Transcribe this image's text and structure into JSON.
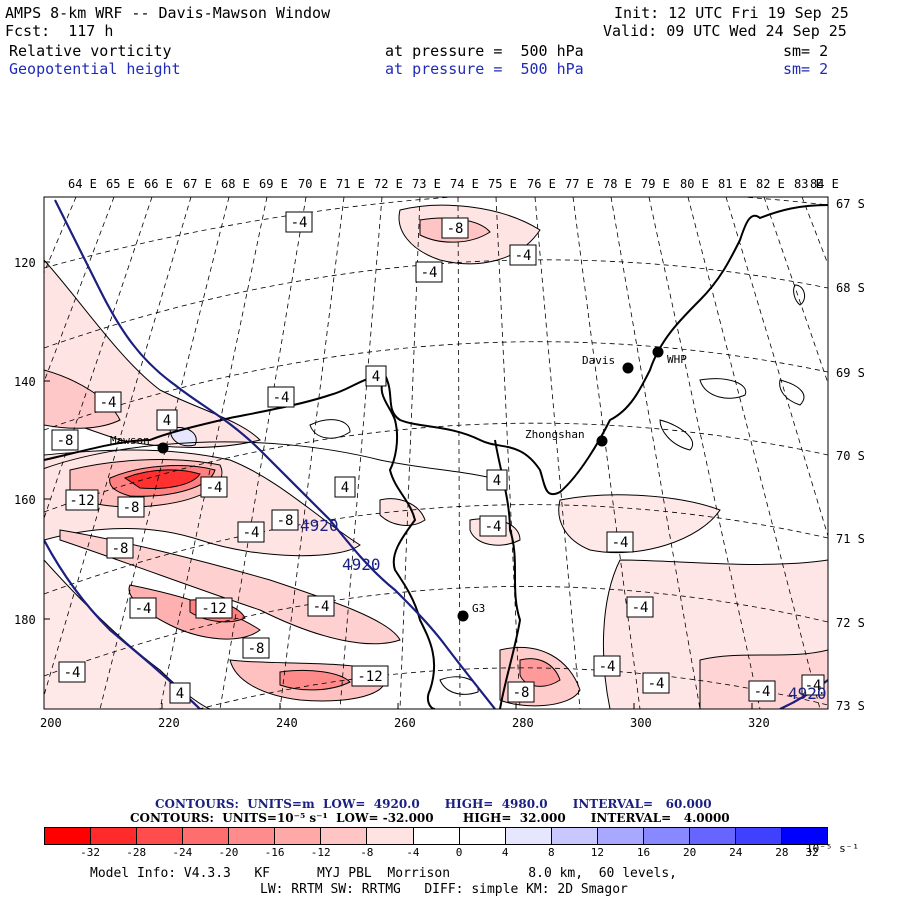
{
  "header": {
    "title": "AMPS 8-km WRF -- Davis-Mawson Window",
    "init": "Init: 12 UTC Fri 19 Sep 25",
    "fcst": "Fcst:  117 h",
    "valid": "Valid: 09 UTC Wed 24 Sep 25",
    "field1": {
      "name": "Relative vorticity",
      "level": "at pressure =  500 hPa",
      "sm": "sm= 2"
    },
    "field2": {
      "name": "Geopotential height",
      "level": "at pressure =  500 hPa",
      "sm": "sm= 2"
    }
  },
  "map": {
    "lon_labels": [
      "64 E",
      "65 E",
      "66 E",
      "67 E",
      "68 E",
      "69 E",
      "70 E",
      "71 E",
      "72 E",
      "73 E",
      "74 E",
      "75 E",
      "76 E",
      "77 E",
      "78 E",
      "79 E",
      "80 E",
      "81 E",
      "82 E",
      "83 E",
      "84 E"
    ],
    "lat_labels": [
      "67 S",
      "68 S",
      "69 S",
      "70 S",
      "71 S",
      "72 S",
      "73 S"
    ],
    "x_labels": [
      "200",
      "220",
      "240",
      "260",
      "280",
      "300",
      "320"
    ],
    "y_labels": [
      "120",
      "140",
      "160",
      "180"
    ],
    "places": [
      {
        "name": "Davis"
      },
      {
        "name": "WHP"
      },
      {
        "name": "Zhongshan"
      },
      {
        "name": "Mawson"
      },
      {
        "name": "G3"
      }
    ],
    "contour_labels": [
      "-4",
      "-8",
      "-4",
      "-4",
      "-4",
      "-4",
      "4",
      "4",
      "-8",
      "-12",
      "-8",
      "-4",
      "-8",
      "-4",
      "4",
      "4",
      "-4",
      "-4",
      "-8",
      "-4",
      "-4",
      "-12",
      "-4",
      "-8",
      "-12",
      "-8",
      "-4",
      "-4",
      "-4",
      "4",
      "-4",
      "-4",
      "-8",
      "-4"
    ],
    "height_labels": [
      "4920",
      "4920",
      "4920"
    ],
    "colors": {
      "height_contour": "#1a1f80",
      "coast": "#000000",
      "neg_strong": "#ff0000",
      "pos_strong": "#0000ff"
    }
  },
  "footer": {
    "contours1": "CONTOURS:  UNITS=m  LOW=  4920.0      HIGH=  4980.0      INTERVAL=   60.000",
    "contours2": "CONTOURS:  UNITS=10⁻⁵ s⁻¹  LOW= -32.000       HIGH=  32.000      INTERVAL=   4.0000",
    "colorbar_ticks": [
      "-32",
      "-28",
      "-24",
      "-20",
      "-16",
      "-12",
      "-8",
      "-4",
      "0",
      "4",
      "8",
      "12",
      "16",
      "20",
      "24",
      "28",
      "32"
    ],
    "colorbar_unit": "10⁻⁵ s⁻¹",
    "colorbar_colors": [
      "#ff0000",
      "#ff2a2a",
      "#ff4d4d",
      "#ff6e6e",
      "#ff8c8c",
      "#ffa8a8",
      "#ffc4c4",
      "#ffe2e2",
      "#ffffff",
      "#ffffff",
      "#e6e6ff",
      "#c8c8ff",
      "#a8a8ff",
      "#8888ff",
      "#6666ff",
      "#4040ff",
      "#0000ff"
    ],
    "model_info": "Model Info: V4.3.3   KF      MYJ PBL  Morrison          8.0 km,  60 levels,",
    "model_info2": "LW: RRTM SW: RRTMG   DIFF: simple KM: 2D Smagor"
  }
}
